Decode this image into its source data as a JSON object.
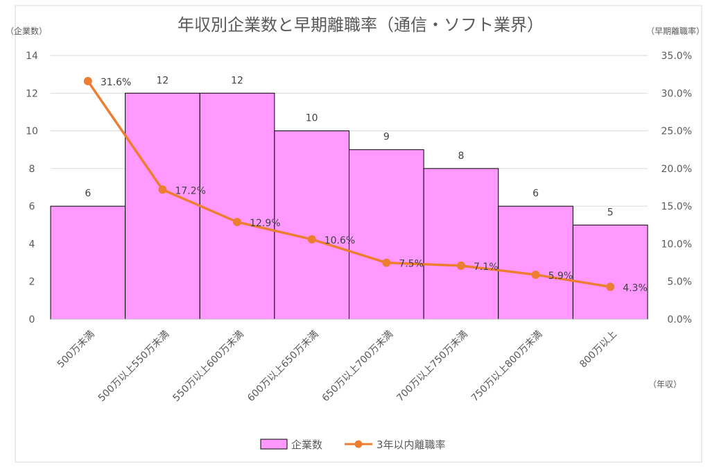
{
  "chart_data": {
    "type": "bar",
    "title": "年収別企業数と早期離職率（通信・ソフト業界）",
    "ylabel_left": "（企業数）",
    "ylabel_right": "（早期離職率）",
    "xlabel": "（年収）",
    "categories": [
      "500万未満",
      "500万以上550万未満",
      "550万以上600万未満",
      "600万以上650万未満",
      "650万以上700万未満",
      "700万以上750万未満",
      "750万以上800万未満",
      "800万以上"
    ],
    "series": [
      {
        "name": "企業数",
        "type": "bar",
        "axis": "left",
        "values": [
          6,
          12,
          12,
          10,
          9,
          8,
          6,
          5
        ],
        "labels": [
          "6",
          "12",
          "12",
          "10",
          "9",
          "8",
          "6",
          "5"
        ]
      },
      {
        "name": "3年以内離職率",
        "type": "line",
        "axis": "right",
        "values": [
          31.6,
          17.2,
          12.9,
          10.6,
          7.5,
          7.1,
          5.9,
          4.3
        ],
        "labels": [
          "31.6%",
          "17.2%",
          "12.9%",
          "10.6%",
          "7.5%",
          "7.1%",
          "5.9%",
          "4.3%"
        ]
      }
    ],
    "left_axis": {
      "min": 0,
      "max": 14,
      "ticks": [
        "0",
        "2",
        "4",
        "6",
        "8",
        "10",
        "12",
        "14"
      ]
    },
    "right_axis": {
      "min": 0,
      "max": 35,
      "ticks": [
        "0.0%",
        "5.0%",
        "10.0%",
        "15.0%",
        "20.0%",
        "25.0%",
        "30.0%",
        "35.0%"
      ]
    },
    "grid": true,
    "legend_position": "bottom",
    "colors": {
      "bar_fill": "#FF99FF",
      "bar_stroke": "#000000",
      "line": "#ED7D31",
      "grid": "#D9D9D9"
    }
  }
}
